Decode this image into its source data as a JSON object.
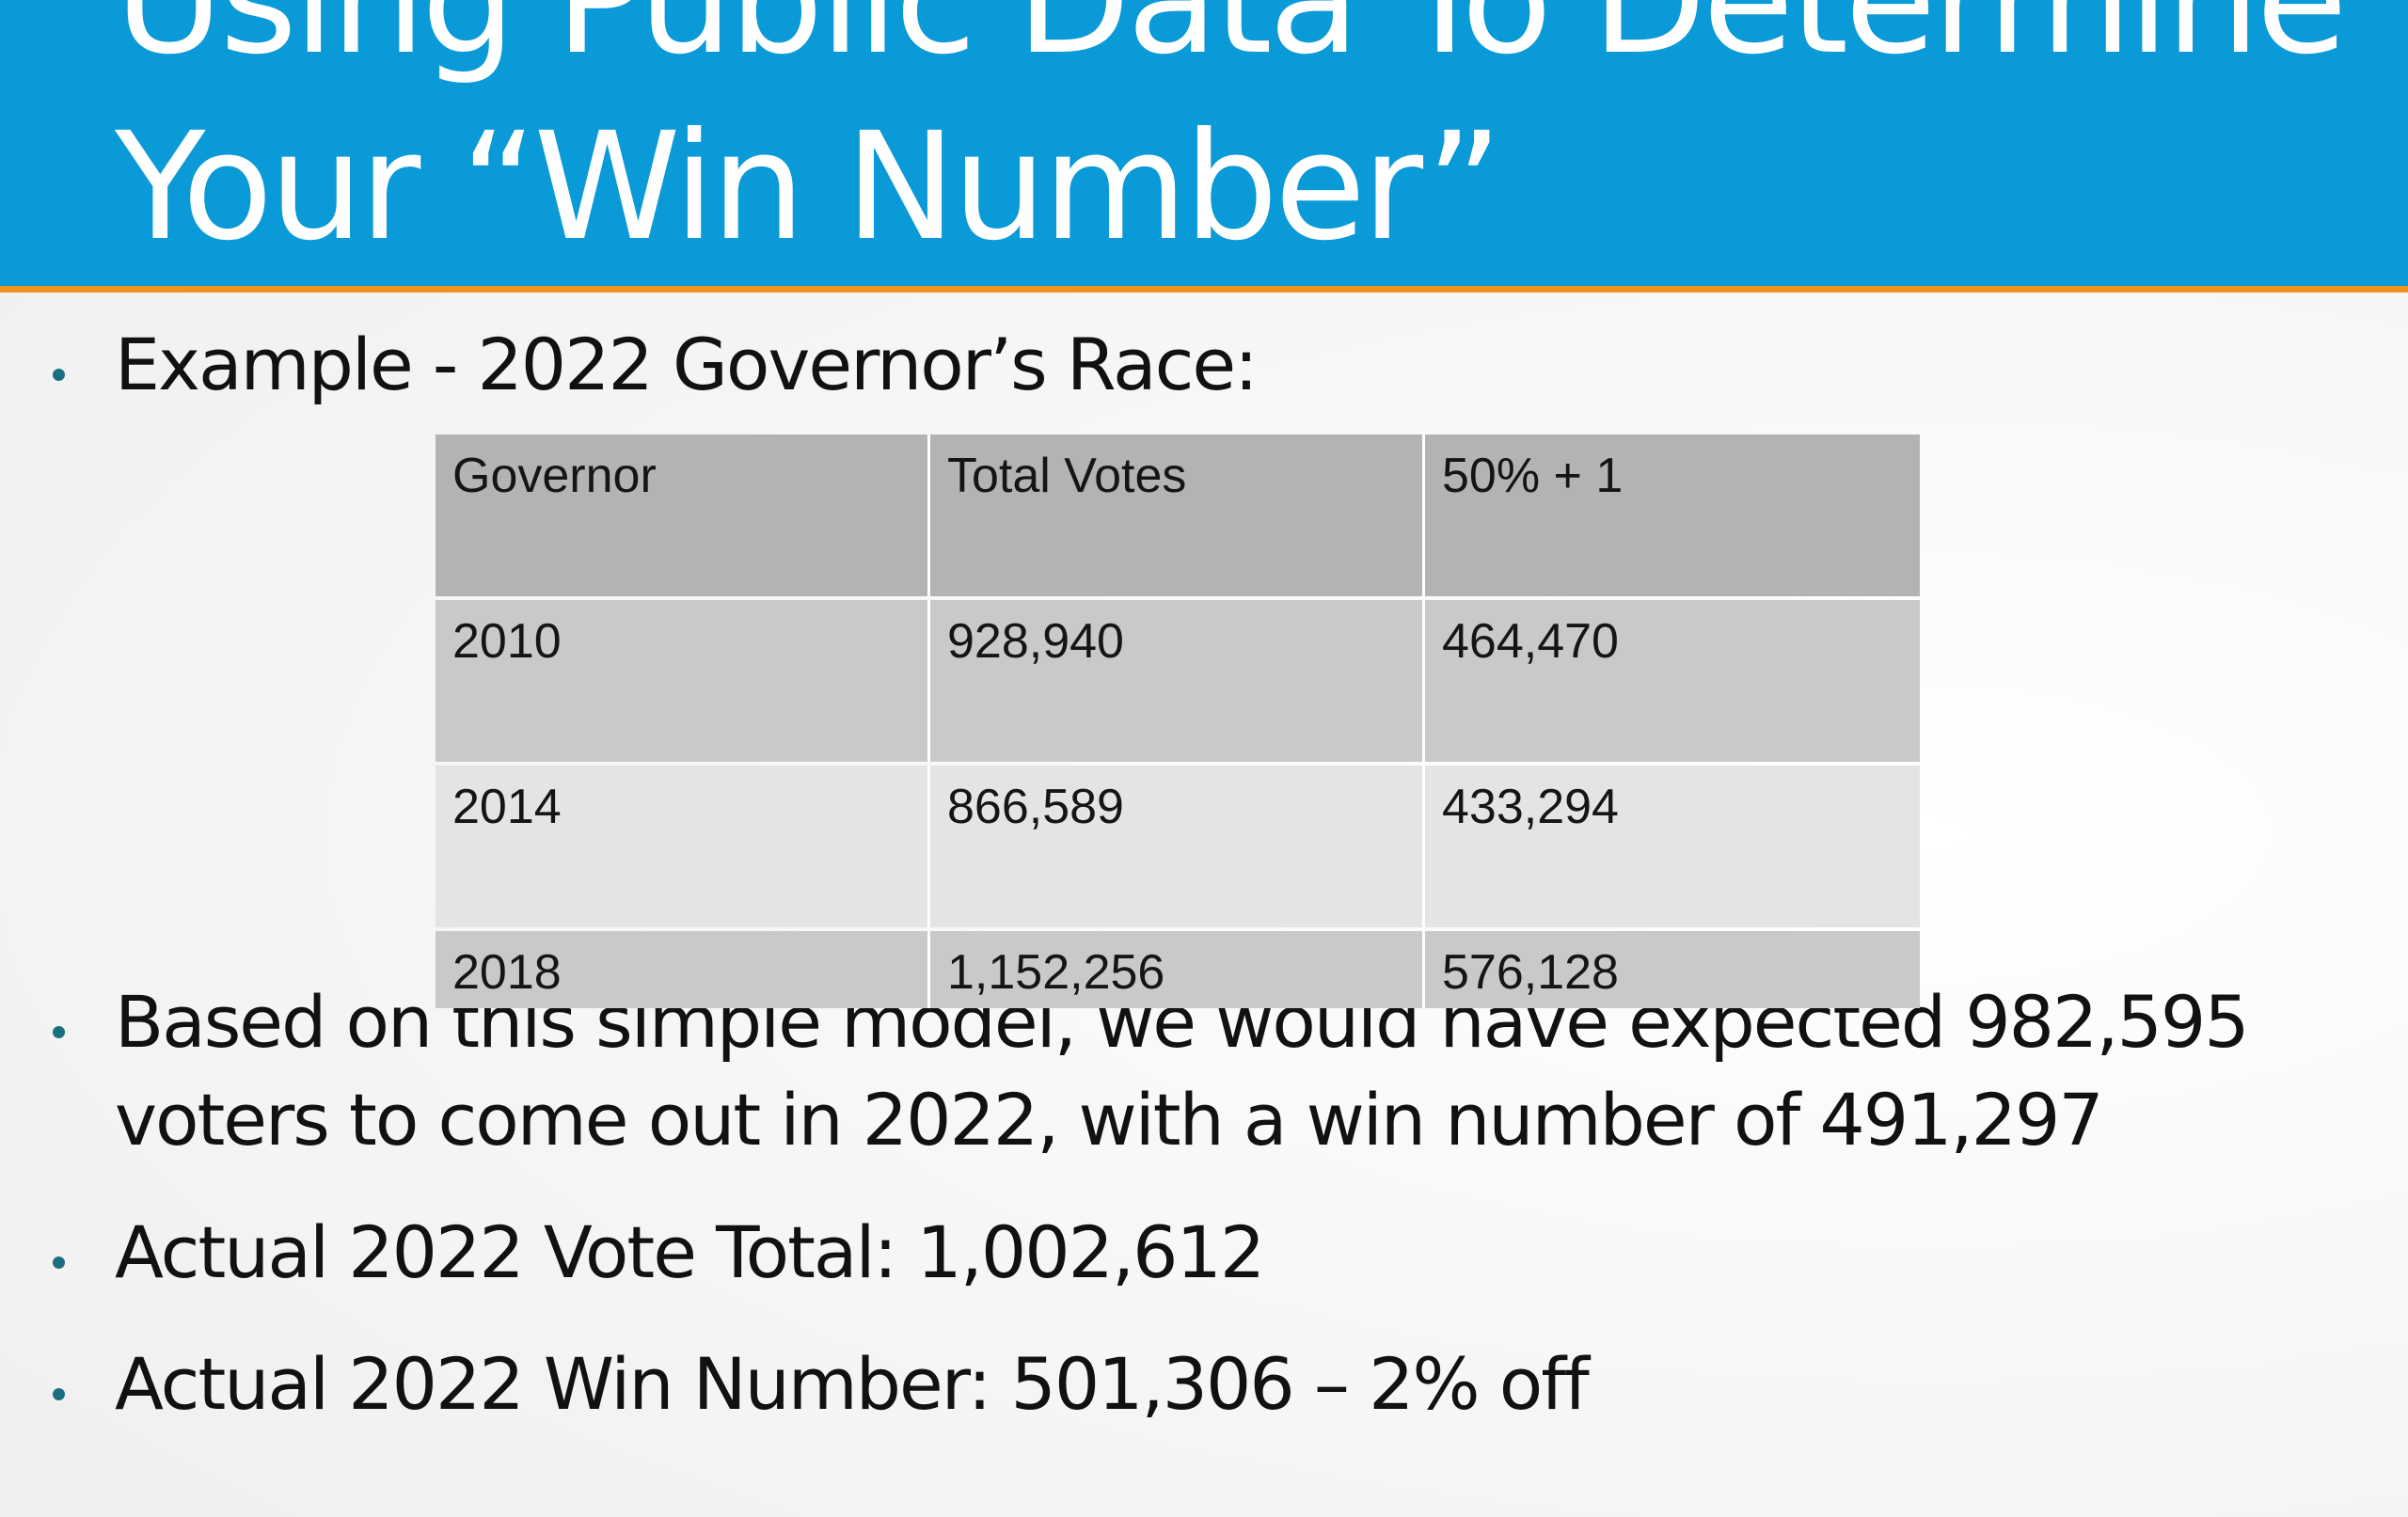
{
  "slide": {
    "title_line1": "Using Public Data To Determine",
    "title_line2": "Your “Win Number”"
  },
  "bullets": {
    "example": "Example - 2022 Governor’s Race:",
    "model_line1": "Based on this simple model, we would have expected 982,595",
    "model_line2": "voters to come out in 2022, with a win number of 491,297",
    "actual_total": "Actual 2022 Vote Total: 1,002,612",
    "actual_win": "Actual 2022 Win Number: 501,306 – 2% off"
  },
  "table": {
    "headers": [
      "Governor",
      "Total Votes",
      "50% + 1"
    ],
    "rows": [
      [
        "2010",
        "928,940",
        "464,470"
      ],
      [
        "2014",
        "866,589",
        "433,294"
      ],
      [
        "2018",
        "1,152,256",
        "576,128"
      ]
    ]
  },
  "colors": {
    "header_bg": "#0a9ad8",
    "header_accent": "#f0921e",
    "bullet_dot": "#1a6f80"
  }
}
